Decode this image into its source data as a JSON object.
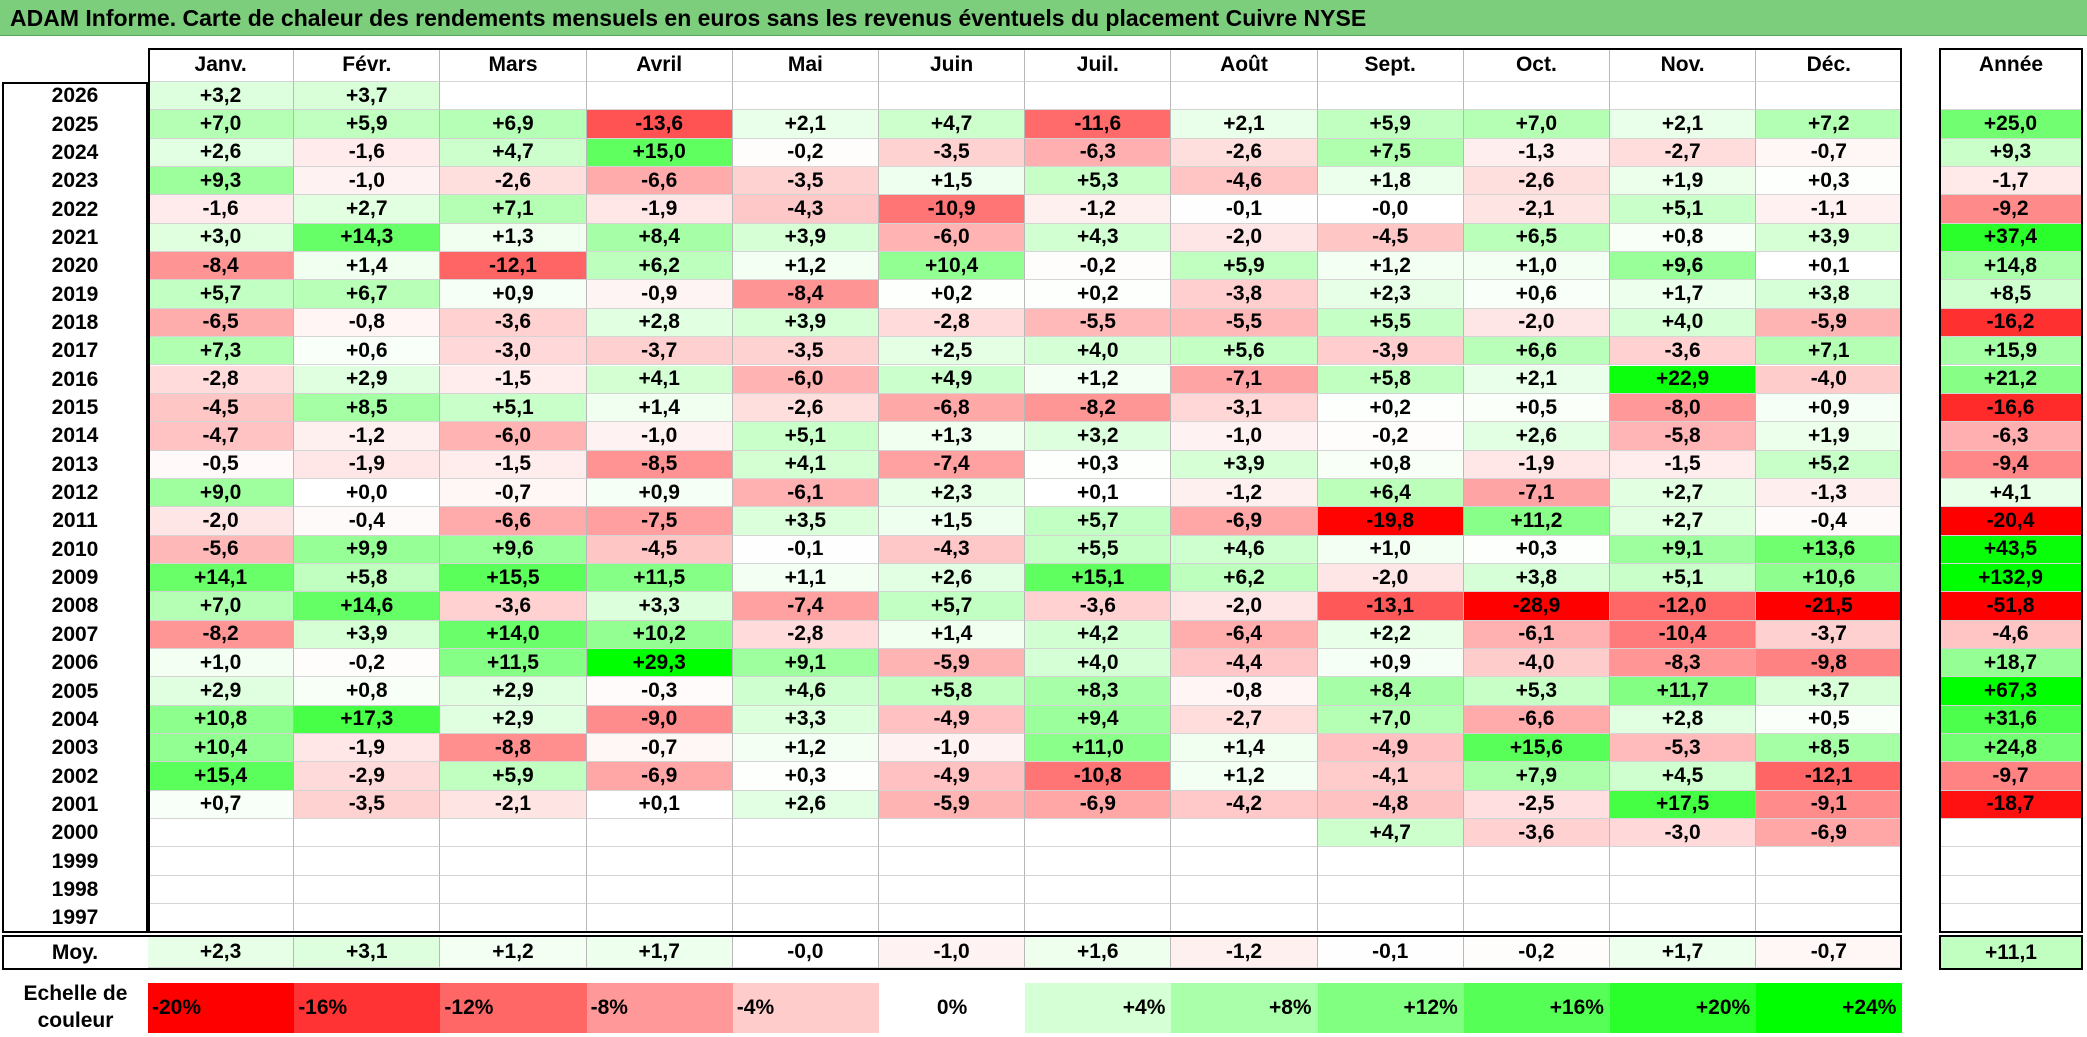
{
  "title": "ADAM Informe. Carte de chaleur des rendements mensuels en euros sans les revenus éventuels du placement Cuivre NYSE",
  "chart_data": {
    "type": "heatmap",
    "title": "ADAM Informe. Carte de chaleur des rendements mensuels en euros sans les revenus éventuels du placement Cuivre NYSE",
    "months": [
      "Janv.",
      "Févr.",
      "Mars",
      "Avril",
      "Mai",
      "Juin",
      "Juil.",
      "Août",
      "Sept.",
      "Oct.",
      "Nov.",
      "Déc."
    ],
    "annual_header": "Année",
    "rows": [
      {
        "year": "2026",
        "values": [
          "+3,2",
          "+3,7",
          "",
          "",
          "",
          "",
          "",
          "",
          "",
          "",
          "",
          ""
        ],
        "annual": ""
      },
      {
        "year": "2025",
        "values": [
          "+7,0",
          "+5,9",
          "+6,9",
          "-13,6",
          "+2,1",
          "+4,7",
          "-11,6",
          "+2,1",
          "+5,9",
          "+7,0",
          "+2,1",
          "+7,2"
        ],
        "annual": "+25,0"
      },
      {
        "year": "2024",
        "values": [
          "+2,6",
          "-1,6",
          "+4,7",
          "+15,0",
          "-0,2",
          "-3,5",
          "-6,3",
          "-2,6",
          "+7,5",
          "-1,3",
          "-2,7",
          "-0,7"
        ],
        "annual": "+9,3"
      },
      {
        "year": "2023",
        "values": [
          "+9,3",
          "-1,0",
          "-2,6",
          "-6,6",
          "-3,5",
          "+1,5",
          "+5,3",
          "-4,6",
          "+1,8",
          "-2,6",
          "+1,9",
          "+0,3"
        ],
        "annual": "-1,7"
      },
      {
        "year": "2022",
        "values": [
          "-1,6",
          "+2,7",
          "+7,1",
          "-1,9",
          "-4,3",
          "-10,9",
          "-1,2",
          "-0,1",
          "-0,0",
          "-2,1",
          "+5,1",
          "-1,1"
        ],
        "annual": "-9,2"
      },
      {
        "year": "2021",
        "values": [
          "+3,0",
          "+14,3",
          "+1,3",
          "+8,4",
          "+3,9",
          "-6,0",
          "+4,3",
          "-2,0",
          "-4,5",
          "+6,5",
          "+0,8",
          "+3,9"
        ],
        "annual": "+37,4"
      },
      {
        "year": "2020",
        "values": [
          "-8,4",
          "+1,4",
          "-12,1",
          "+6,2",
          "+1,2",
          "+10,4",
          "-0,2",
          "+5,9",
          "+1,2",
          "+1,0",
          "+9,6",
          "+0,1"
        ],
        "annual": "+14,8"
      },
      {
        "year": "2019",
        "values": [
          "+5,7",
          "+6,7",
          "+0,9",
          "-0,9",
          "-8,4",
          "+0,2",
          "+0,2",
          "-3,8",
          "+2,3",
          "+0,6",
          "+1,7",
          "+3,8"
        ],
        "annual": "+8,5"
      },
      {
        "year": "2018",
        "values": [
          "-6,5",
          "-0,8",
          "-3,6",
          "+2,8",
          "+3,9",
          "-2,8",
          "-5,5",
          "-5,5",
          "+5,5",
          "-2,0",
          "+4,0",
          "-5,9"
        ],
        "annual": "-16,2"
      },
      {
        "year": "2017",
        "values": [
          "+7,3",
          "+0,6",
          "-3,0",
          "-3,7",
          "-3,5",
          "+2,5",
          "+4,0",
          "+5,6",
          "-3,9",
          "+6,6",
          "-3,6",
          "+7,1"
        ],
        "annual": "+15,9"
      },
      {
        "year": "2016",
        "values": [
          "-2,8",
          "+2,9",
          "-1,5",
          "+4,1",
          "-6,0",
          "+4,9",
          "+1,2",
          "-7,1",
          "+5,8",
          "+2,1",
          "+22,9",
          "-4,0"
        ],
        "annual": "+21,2"
      },
      {
        "year": "2015",
        "values": [
          "-4,5",
          "+8,5",
          "+5,1",
          "+1,4",
          "-2,6",
          "-6,8",
          "-8,2",
          "-3,1",
          "+0,2",
          "+0,5",
          "-8,0",
          "+0,9"
        ],
        "annual": "-16,6"
      },
      {
        "year": "2014",
        "values": [
          "-4,7",
          "-1,2",
          "-6,0",
          "-1,0",
          "+5,1",
          "+1,3",
          "+3,2",
          "-1,0",
          "-0,2",
          "+2,6",
          "-5,8",
          "+1,9"
        ],
        "annual": "-6,3"
      },
      {
        "year": "2013",
        "values": [
          "-0,5",
          "-1,9",
          "-1,5",
          "-8,5",
          "+4,1",
          "-7,4",
          "+0,3",
          "+3,9",
          "+0,8",
          "-1,9",
          "-1,5",
          "+5,2"
        ],
        "annual": "-9,4"
      },
      {
        "year": "2012",
        "values": [
          "+9,0",
          "+0,0",
          "-0,7",
          "+0,9",
          "-6,1",
          "+2,3",
          "+0,1",
          "-1,2",
          "+6,4",
          "-7,1",
          "+2,7",
          "-1,3"
        ],
        "annual": "+4,1"
      },
      {
        "year": "2011",
        "values": [
          "-2,0",
          "-0,4",
          "-6,6",
          "-7,5",
          "+3,5",
          "+1,5",
          "+5,7",
          "-6,9",
          "-19,8",
          "+11,2",
          "+2,7",
          "-0,4"
        ],
        "annual": "-20,4"
      },
      {
        "year": "2010",
        "values": [
          "-5,6",
          "+9,9",
          "+9,6",
          "-4,5",
          "-0,1",
          "-4,3",
          "+5,5",
          "+4,6",
          "+1,0",
          "+0,3",
          "+9,1",
          "+13,6"
        ],
        "annual": "+43,5"
      },
      {
        "year": "2009",
        "values": [
          "+14,1",
          "+5,8",
          "+15,5",
          "+11,5",
          "+1,1",
          "+2,6",
          "+15,1",
          "+6,2",
          "-2,0",
          "+3,8",
          "+5,1",
          "+10,6"
        ],
        "annual": "+132,9"
      },
      {
        "year": "2008",
        "values": [
          "+7,0",
          "+14,6",
          "-3,6",
          "+3,3",
          "-7,4",
          "+5,7",
          "-3,6",
          "-2,0",
          "-13,1",
          "-28,9",
          "-12,0",
          "-21,5"
        ],
        "annual": "-51,8"
      },
      {
        "year": "2007",
        "values": [
          "-8,2",
          "+3,9",
          "+14,0",
          "+10,2",
          "-2,8",
          "+1,4",
          "+4,2",
          "-6,4",
          "+2,2",
          "-6,1",
          "-10,4",
          "-3,7"
        ],
        "annual": "-4,6"
      },
      {
        "year": "2006",
        "values": [
          "+1,0",
          "-0,2",
          "+11,5",
          "+29,3",
          "+9,1",
          "-5,9",
          "+4,0",
          "-4,4",
          "+0,9",
          "-4,0",
          "-8,3",
          "-9,8"
        ],
        "annual": "+18,7"
      },
      {
        "year": "2005",
        "values": [
          "+2,9",
          "+0,8",
          "+2,9",
          "-0,3",
          "+4,6",
          "+5,8",
          "+8,3",
          "-0,8",
          "+8,4",
          "+5,3",
          "+11,7",
          "+3,7"
        ],
        "annual": "+67,3"
      },
      {
        "year": "2004",
        "values": [
          "+10,8",
          "+17,3",
          "+2,9",
          "-9,0",
          "+3,3",
          "-4,9",
          "+9,4",
          "-2,7",
          "+7,0",
          "-6,6",
          "+2,8",
          "+0,5"
        ],
        "annual": "+31,6"
      },
      {
        "year": "2003",
        "values": [
          "+10,4",
          "-1,9",
          "-8,8",
          "-0,7",
          "+1,2",
          "-1,0",
          "+11,0",
          "+1,4",
          "-4,9",
          "+15,6",
          "-5,3",
          "+8,5"
        ],
        "annual": "+24,8"
      },
      {
        "year": "2002",
        "values": [
          "+15,4",
          "-2,9",
          "+5,9",
          "-6,9",
          "+0,3",
          "-4,9",
          "-10,8",
          "+1,2",
          "-4,1",
          "+7,9",
          "+4,5",
          "-12,1"
        ],
        "annual": "-9,7"
      },
      {
        "year": "2001",
        "values": [
          "+0,7",
          "-3,5",
          "-2,1",
          "+0,1",
          "+2,6",
          "-5,9",
          "-6,9",
          "-4,2",
          "-4,8",
          "-2,5",
          "+17,5",
          "-9,1"
        ],
        "annual": "-18,7"
      },
      {
        "year": "2000",
        "values": [
          "",
          "",
          "",
          "",
          "",
          "",
          "",
          "",
          "+4,7",
          "-3,6",
          "-3,0",
          "-6,9"
        ],
        "annual": ""
      },
      {
        "year": "1999",
        "values": [
          "",
          "",
          "",
          "",
          "",
          "",
          "",
          "",
          "",
          "",
          "",
          ""
        ],
        "annual": ""
      },
      {
        "year": "1998",
        "values": [
          "",
          "",
          "",
          "",
          "",
          "",
          "",
          "",
          "",
          "",
          "",
          ""
        ],
        "annual": ""
      },
      {
        "year": "1997",
        "values": [
          "",
          "",
          "",
          "",
          "",
          "",
          "",
          "",
          "",
          "",
          "",
          ""
        ],
        "annual": ""
      }
    ],
    "average": {
      "label": "Moy.",
      "values": [
        "+2,3",
        "+3,1",
        "+1,2",
        "+1,7",
        "-0,0",
        "-1,0",
        "+1,6",
        "-1,2",
        "-0,1",
        "-0,2",
        "+1,7",
        "-0,7"
      ],
      "annual": "+11,1"
    },
    "color_scale": {
      "label": "Echelle de couleur",
      "stops": [
        "-20%",
        "-16%",
        "-12%",
        "-8%",
        "-4%",
        "0%",
        "+4%",
        "+8%",
        "+12%",
        "+16%",
        "+20%",
        "+24%"
      ],
      "colors": {
        "negative": "#ff0000",
        "neutral": "#ffffff",
        "positive": "#00ff00"
      }
    }
  }
}
